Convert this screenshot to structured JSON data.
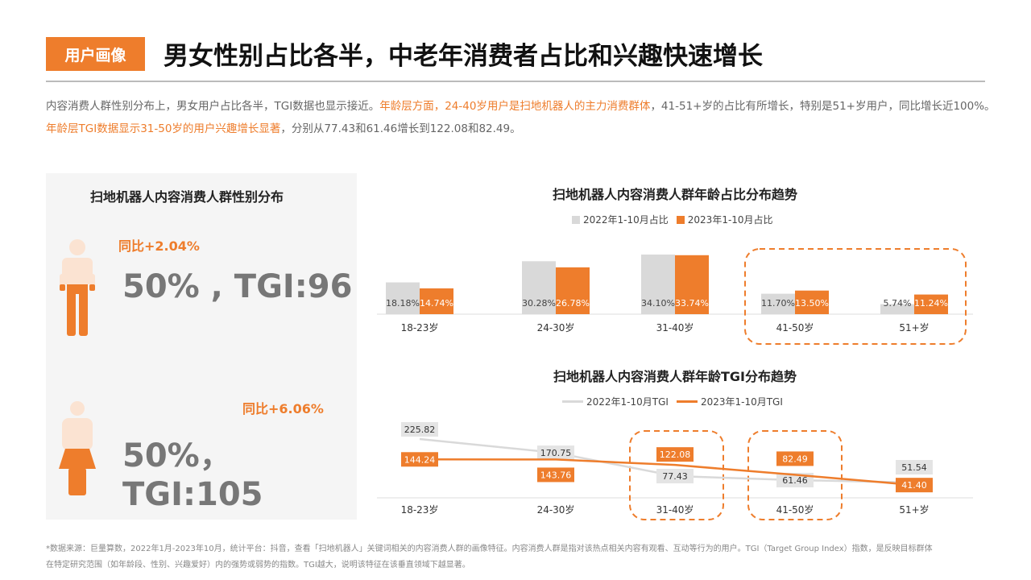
{
  "header": {
    "tag": "用户画像",
    "title": "男女性别占比各半，中老年消费者占比和兴趣快速增长"
  },
  "description": {
    "p1": "内容消费人群性别分布上，男女用户占比各半，TGI数据也显示接近。",
    "p2": "年龄层方面，24-40岁用户是扫地机器人的主力消费群体",
    "p3": "，41-51+岁的占比有所增长，特别是51+岁用户，同比增长近100%。",
    "p4": "年龄层TGI数据显示31-50岁的用户兴趣增长显著",
    "p5": "，分别从77.43和61.46增长到122.08和82.49。"
  },
  "gender": {
    "title": "扫地机器人内容消费人群性别分布",
    "male": {
      "yoy": "同比+2.04%",
      "value": "50% , TGI:96"
    },
    "female": {
      "yoy": "同比+6.06%",
      "value": "50%，TGI:105"
    }
  },
  "colors": {
    "accent": "#ee7d2c",
    "gray": "#d9d9d9",
    "light": "#fbe3d2"
  },
  "chart_data": [
    {
      "type": "bar",
      "title": "扫地机器人内容消费人群年龄占比分布趋势",
      "categories": [
        "18-23岁",
        "24-30岁",
        "31-40岁",
        "41-50岁",
        "51+岁"
      ],
      "series": [
        {
          "name": "2022年1-10月占比",
          "values": [
            18.18,
            30.28,
            34.1,
            11.7,
            5.74
          ],
          "labels": [
            "18.18%",
            "30.28%",
            "34.10%",
            "11.70%",
            "5.74%"
          ]
        },
        {
          "name": "2023年1-10月占比",
          "values": [
            14.74,
            26.78,
            33.74,
            13.5,
            11.24
          ],
          "labels": [
            "14.74%",
            "26.78%",
            "33.74%",
            "13.50%",
            "11.24%"
          ]
        }
      ],
      "highlight": [
        "41-50岁",
        "51+岁"
      ]
    },
    {
      "type": "line",
      "title": "扫地机器人内容消费人群年龄TGI分布趋势",
      "categories": [
        "18-23岁",
        "24-30岁",
        "31-40岁",
        "41-50岁",
        "51+岁"
      ],
      "series": [
        {
          "name": "2022年1-10月TGI",
          "values": [
            225.82,
            170.75,
            77.43,
            61.46,
            51.54
          ],
          "labels": [
            "225.82",
            "170.75",
            "77.43",
            "61.46",
            "51.54"
          ]
        },
        {
          "name": "2023年1-10月TGI",
          "values": [
            144.24,
            143.76,
            122.08,
            82.49,
            41.4
          ],
          "labels": [
            "144.24",
            "143.76",
            "122.08",
            "82.49",
            "41.40"
          ]
        }
      ],
      "highlight": [
        "31-40岁",
        "41-50岁"
      ]
    }
  ],
  "footnote": {
    "l1": "*数据来源：巨量算数，2022年1月-2023年10月，统计平台：抖音，查看「扫地机器人」关键词相关的内容消费人群的画像特征。内容消费人群是指对该热点相关内容有观看、互动等行为的用户。TGI（Target Group Index）指数，是反映目标群体",
    "l2": "在特定研究范围（如年龄段、性别、兴趣爱好）内的强势或弱势的指数。TGI越大，说明该特征在该垂直领域下越显著。"
  }
}
